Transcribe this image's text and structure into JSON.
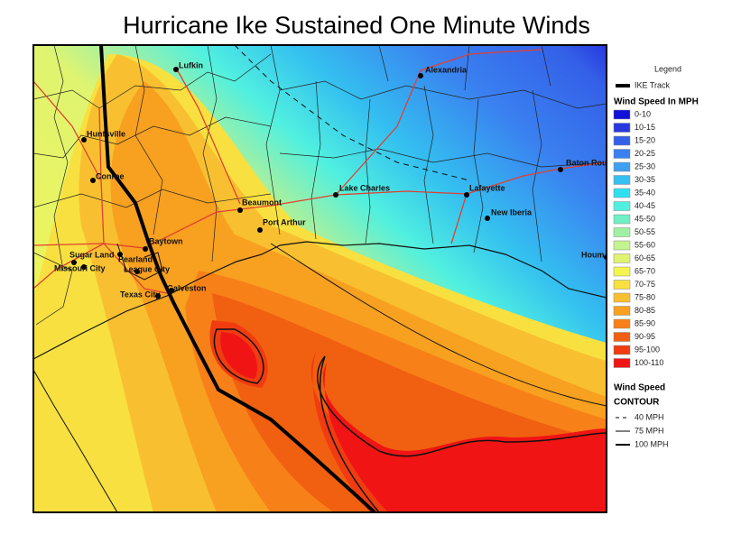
{
  "title": "Hurricane Ike Sustained One Minute Winds",
  "legend": {
    "title": "Legend",
    "track": "IKE Track",
    "wind_speed_title": "Wind Speed In MPH",
    "classes": [
      {
        "label": "0-10",
        "color": "#1010d8"
      },
      {
        "label": "10-15",
        "color": "#2838e0"
      },
      {
        "label": "15-20",
        "color": "#3460e8"
      },
      {
        "label": "20-25",
        "color": "#3a80f0"
      },
      {
        "label": "25-30",
        "color": "#40a0f0"
      },
      {
        "label": "30-35",
        "color": "#34c0f0"
      },
      {
        "label": "35-40",
        "color": "#30e0f0"
      },
      {
        "label": "40-45",
        "color": "#50f0e0"
      },
      {
        "label": "45-50",
        "color": "#70f0c4"
      },
      {
        "label": "50-55",
        "color": "#a0f0a4"
      },
      {
        "label": "55-60",
        "color": "#c4f490"
      },
      {
        "label": "60-65",
        "color": "#e0f470"
      },
      {
        "label": "65-70",
        "color": "#f4f450"
      },
      {
        "label": "70-75",
        "color": "#f8e040"
      },
      {
        "label": "75-80",
        "color": "#f8c030"
      },
      {
        "label": "80-85",
        "color": "#f8a020"
      },
      {
        "label": "85-90",
        "color": "#f88018"
      },
      {
        "label": "90-95",
        "color": "#f06010"
      },
      {
        "label": "95-100",
        "color": "#f03c10"
      },
      {
        "label": "100-110",
        "color": "#f01414"
      }
    ],
    "contour_title_1": "Wind Speed",
    "contour_title_2": "CONTOUR",
    "contours": [
      {
        "label": "40 MPH",
        "style": "dashed",
        "width": 1
      },
      {
        "label": "75 MPH",
        "style": "solid",
        "width": 1
      },
      {
        "label": "100 MPH",
        "style": "solid",
        "width": 2
      }
    ]
  },
  "cities": [
    "Lufkin",
    "Alexandria",
    "Huntsville",
    "Conroe",
    "Beaumont",
    "Port Arthur",
    "Lake Charles",
    "Lafayette",
    "New Iberia",
    "Baton Rouge",
    "Baytown",
    "Sugar Land",
    "Pearland",
    "Missouri City",
    "League City",
    "Galveston",
    "Texas City",
    "Houm"
  ]
}
